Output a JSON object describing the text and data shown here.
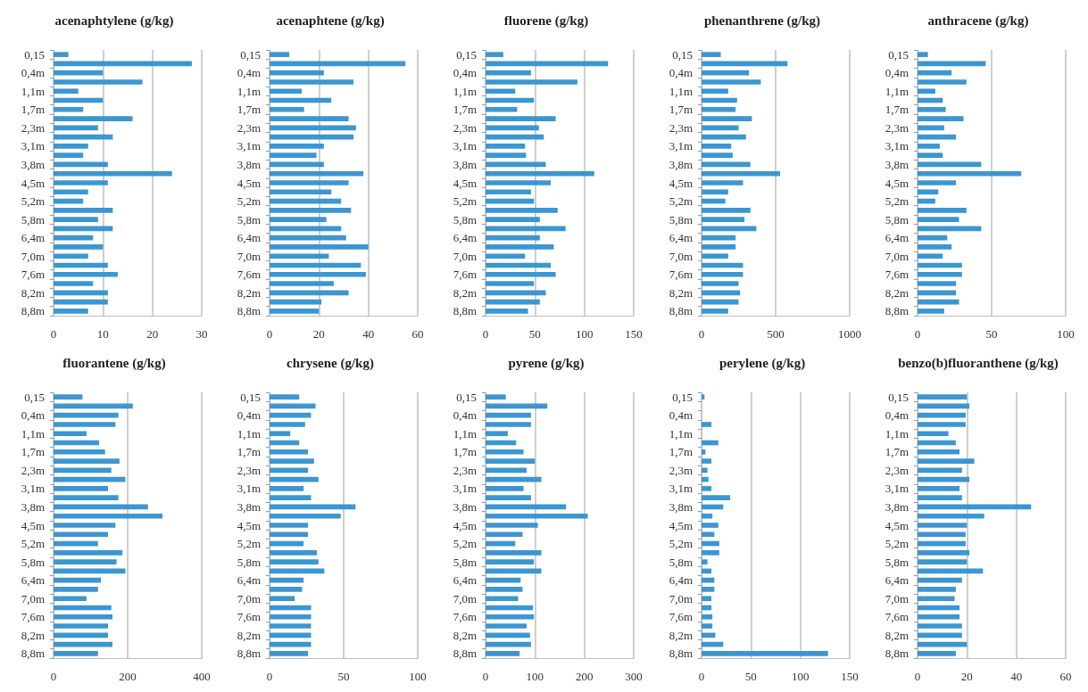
{
  "chart_data": [
    {
      "type": "bar",
      "orientation": "horizontal",
      "title": "acenaphtylene (g/kg)",
      "color": "#3b96d1",
      "grid": "x",
      "xlim": [
        0,
        30
      ],
      "xticks": [
        0,
        10,
        20,
        30
      ],
      "categories": [
        "0,15",
        null,
        "0,4m",
        null,
        "1,1m",
        null,
        "1,7m",
        null,
        "2,3m",
        null,
        "3,1m",
        null,
        "3,8m",
        null,
        "4,5m",
        null,
        "5,2m",
        null,
        "5,8m",
        null,
        "6,4m",
        null,
        "7,0m",
        null,
        "7,6m",
        null,
        "8,2m",
        null,
        "8,8m"
      ],
      "values": [
        3,
        28,
        10,
        18,
        5,
        10,
        6,
        16,
        9,
        12,
        7,
        6,
        11,
        24,
        11,
        7,
        6,
        12,
        9,
        12,
        8,
        10,
        7,
        11,
        13,
        8,
        11,
        11,
        7
      ]
    },
    {
      "type": "bar",
      "orientation": "horizontal",
      "title": "acenaphtene (g/kg)",
      "color": "#3b96d1",
      "grid": "x",
      "xlim": [
        0,
        60
      ],
      "xticks": [
        0,
        20,
        40,
        60
      ],
      "categories": [
        "0,15",
        null,
        "0,4m",
        null,
        "1,1m",
        null,
        "1,7m",
        null,
        "2,3m",
        null,
        "3,1m",
        null,
        "3,8m",
        null,
        "4,5m",
        null,
        "5,2m",
        null,
        "5,8m",
        null,
        "6,4m",
        null,
        "7,0m",
        null,
        "7,6m",
        null,
        "8,2m",
        null,
        "8,8m"
      ],
      "values": [
        8,
        55,
        22,
        34,
        13,
        25,
        14,
        32,
        35,
        34,
        22,
        19,
        22,
        38,
        32,
        25,
        29,
        33,
        23,
        29,
        31,
        40,
        24,
        37,
        39,
        26,
        32,
        21,
        20
      ]
    },
    {
      "type": "bar",
      "orientation": "horizontal",
      "title": "fluorene (g/kg)",
      "color": "#3b96d1",
      "grid": "x",
      "xlim": [
        0,
        150
      ],
      "xticks": [
        0,
        50,
        100,
        150
      ],
      "categories": [
        "0,15",
        null,
        "0,4m",
        null,
        "1,1m",
        null,
        "1,7m",
        null,
        "2,3m",
        null,
        "3,1m",
        null,
        "3,8m",
        null,
        "4,5m",
        null,
        "5,2m",
        null,
        "5,8m",
        null,
        "6,4m",
        null,
        "7,0m",
        null,
        "7,6m",
        null,
        "8,2m",
        null,
        "8,8m"
      ],
      "values": [
        18,
        124,
        46,
        93,
        30,
        49,
        32,
        71,
        54,
        59,
        40,
        41,
        61,
        110,
        66,
        46,
        49,
        73,
        55,
        81,
        55,
        69,
        40,
        66,
        71,
        49,
        61,
        55,
        43
      ]
    },
    {
      "type": "bar",
      "orientation": "horizontal",
      "title": "phenanthrene (g/kg)",
      "color": "#3b96d1",
      "grid": "x",
      "xlim": [
        0,
        1000
      ],
      "xticks": [
        0,
        500,
        1000
      ],
      "categories": [
        "0,15",
        null,
        "0,4m",
        null,
        "1,1m",
        null,
        "1,7m",
        null,
        "2,3m",
        null,
        "3,1m",
        null,
        "3,8m",
        null,
        "4,5m",
        null,
        "5,2m",
        null,
        "5,8m",
        null,
        "6,4m",
        null,
        "7,0m",
        null,
        "7,6m",
        null,
        "8,2m",
        null,
        "8,8m"
      ],
      "values": [
        130,
        580,
        320,
        400,
        180,
        240,
        230,
        340,
        250,
        300,
        200,
        210,
        330,
        530,
        280,
        180,
        160,
        330,
        290,
        370,
        230,
        230,
        180,
        280,
        280,
        250,
        260,
        250,
        180
      ]
    },
    {
      "type": "bar",
      "orientation": "horizontal",
      "title": "anthracene (g/kg)",
      "color": "#3b96d1",
      "grid": "x",
      "xlim": [
        0,
        100
      ],
      "xticks": [
        0,
        50,
        100
      ],
      "categories": [
        "0,15",
        null,
        "0,4m",
        null,
        "1,1m",
        null,
        "1,7m",
        null,
        "2,3m",
        null,
        "3,1m",
        null,
        "3,8m",
        null,
        "4,5m",
        null,
        "5,2m",
        null,
        "5,8m",
        null,
        "6,4m",
        null,
        "7,0m",
        null,
        "7,6m",
        null,
        "8,2m",
        null,
        "8,8m"
      ],
      "values": [
        7,
        46,
        23,
        33,
        12,
        17,
        19,
        31,
        18,
        26,
        15,
        17,
        43,
        70,
        26,
        14,
        12,
        33,
        28,
        43,
        20,
        23,
        17,
        30,
        30,
        26,
        26,
        28,
        18
      ]
    },
    {
      "type": "bar",
      "orientation": "horizontal",
      "title": "fluorantene (g/kg)",
      "color": "#3b96d1",
      "grid": "x",
      "xlim": [
        0,
        400
      ],
      "xticks": [
        0,
        200,
        400
      ],
      "categories": [
        "0,15",
        null,
        "0,4m",
        null,
        "1,1m",
        null,
        "1,7m",
        null,
        "2,3m",
        null,
        "3,1m",
        null,
        "3,8m",
        null,
        "4,5m",
        null,
        "5,2m",
        null,
        "5,8m",
        null,
        "6,4m",
        null,
        "7,0m",
        null,
        "7,6m",
        null,
        "8,2m",
        null,
        "8,8m"
      ],
      "values": [
        78,
        214,
        175,
        167,
        89,
        123,
        139,
        178,
        156,
        194,
        147,
        175,
        255,
        294,
        167,
        147,
        120,
        186,
        170,
        194,
        128,
        120,
        89,
        156,
        159,
        147,
        147,
        159,
        120
      ]
    },
    {
      "type": "bar",
      "orientation": "horizontal",
      "title": "chrysene (g/kg)",
      "color": "#3b96d1",
      "grid": "x",
      "xlim": [
        0,
        100
      ],
      "xticks": [
        0,
        50,
        100
      ],
      "categories": [
        "0,15",
        null,
        "0,4m",
        null,
        "1,1m",
        null,
        "1,7m",
        null,
        "2,3m",
        null,
        "3,1m",
        null,
        "3,8m",
        null,
        "4,5m",
        null,
        "5,2m",
        null,
        "5,8m",
        null,
        "6,4m",
        null,
        "7,0m",
        null,
        "7,6m",
        null,
        "8,2m",
        null,
        "8,8m"
      ],
      "values": [
        20,
        31,
        28,
        24,
        14,
        20,
        26,
        30,
        26,
        33,
        23,
        28,
        58,
        48,
        26,
        26,
        23,
        32,
        33,
        37,
        23,
        22,
        17,
        28,
        28,
        28,
        28,
        28,
        26
      ]
    },
    {
      "type": "bar",
      "orientation": "horizontal",
      "title": "pyrene (g/kg)",
      "color": "#3b96d1",
      "grid": "x",
      "xlim": [
        0,
        300
      ],
      "xticks": [
        0,
        100,
        200,
        300
      ],
      "categories": [
        "0,15",
        null,
        "0,4m",
        null,
        "1,1m",
        null,
        "1,7m",
        null,
        "2,3m",
        null,
        "3,1m",
        null,
        "3,8m",
        null,
        "4,5m",
        null,
        "5,2m",
        null,
        "5,8m",
        null,
        "6,4m",
        null,
        "7,0m",
        null,
        "7,6m",
        null,
        "8,2m",
        null,
        "8,8m"
      ],
      "values": [
        41,
        125,
        92,
        92,
        45,
        62,
        77,
        100,
        83,
        113,
        77,
        92,
        163,
        207,
        106,
        75,
        60,
        113,
        98,
        113,
        71,
        75,
        66,
        96,
        98,
        83,
        90,
        92,
        69
      ]
    },
    {
      "type": "bar",
      "orientation": "horizontal",
      "title": "perylene (g/kg)",
      "color": "#3b96d1",
      "grid": "x",
      "xlim": [
        0,
        150
      ],
      "xticks": [
        0,
        50,
        100,
        150
      ],
      "categories": [
        "0,15",
        null,
        "0,4m",
        null,
        "1,1m",
        null,
        "1,7m",
        null,
        "2,3m",
        null,
        "3,1m",
        null,
        "3,8m",
        null,
        "4,5m",
        null,
        "5,2m",
        null,
        "5,8m",
        null,
        "6,4m",
        null,
        "7,0m",
        null,
        "7,6m",
        null,
        "8,2m",
        null,
        "8,8m"
      ],
      "values": [
        3,
        null,
        null,
        10,
        null,
        17,
        4,
        10,
        6,
        7,
        10,
        29,
        22,
        11,
        17,
        13,
        18,
        18,
        6,
        10,
        13,
        13,
        10,
        10,
        11,
        11,
        14,
        22,
        128
      ]
    },
    {
      "type": "bar",
      "orientation": "horizontal",
      "title": "benzo(b)fluoranthene (g/kg)",
      "color": "#3b96d1",
      "grid": "x",
      "xlim": [
        0,
        60
      ],
      "xticks": [
        0,
        20,
        40,
        60
      ],
      "categories": [
        "0,15",
        null,
        "0,4m",
        null,
        "1,1m",
        null,
        "1,7m",
        null,
        "2,3m",
        null,
        "3,1m",
        null,
        "3,8m",
        null,
        "4,5m",
        null,
        "5,2m",
        null,
        "5,8m",
        null,
        "6,4m",
        null,
        "7,0m",
        null,
        "7,6m",
        null,
        "8,2m",
        null,
        "8,8m"
      ],
      "values": [
        20,
        21,
        19.5,
        19.5,
        12.5,
        15.5,
        17,
        23,
        18,
        21,
        17,
        18,
        46,
        27,
        20,
        19.5,
        19.5,
        21,
        20,
        26.5,
        18,
        15.5,
        15,
        17,
        17,
        18,
        18,
        20,
        15.5
      ]
    }
  ]
}
